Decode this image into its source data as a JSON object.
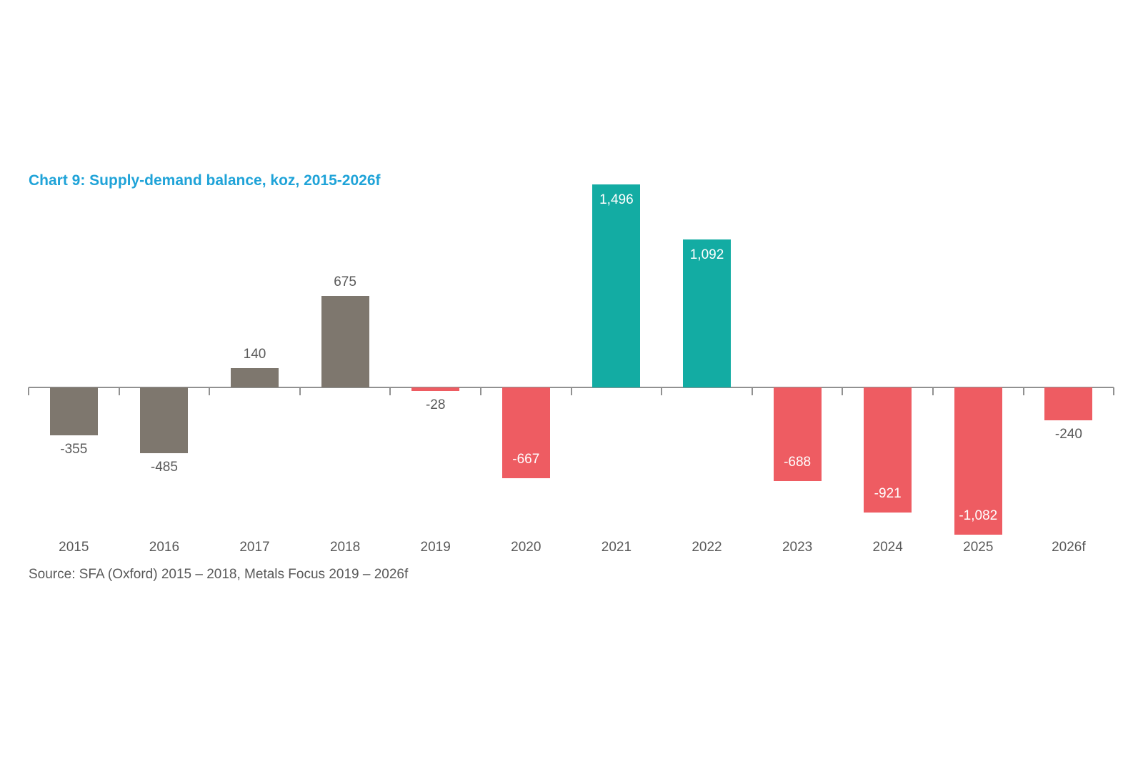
{
  "title": "Chart 9: Supply-demand balance, koz, 2015-2026f",
  "source": "Source: SFA (Oxford) 2015 – 2018, Metals Focus 2019 – 2026f",
  "colors": {
    "title": "#1FA3D8",
    "text": "#595959",
    "axis": "#919191",
    "inside_label": "#FFFFFF",
    "background": "#FFFFFF"
  },
  "chart_data": {
    "type": "bar",
    "title": "Chart 9: Supply-demand balance, koz, 2015-2026f",
    "unit": "koz",
    "categories": [
      "2015",
      "2016",
      "2017",
      "2018",
      "2019",
      "2020",
      "2021",
      "2022",
      "2023",
      "2024",
      "2025",
      "2026f"
    ],
    "values": [
      -355,
      -485,
      140,
      675,
      -28,
      -667,
      1496,
      1092,
      -688,
      -921,
      -1082,
      -240
    ],
    "value_labels": [
      "-355",
      "-485",
      "140",
      "675",
      "-28",
      "-667",
      "1,496",
      "1,092",
      "-688",
      "-921",
      "-1,082",
      "-240"
    ],
    "bar_color_keys": [
      "gray",
      "gray",
      "gray",
      "gray",
      "red",
      "red",
      "teal",
      "teal",
      "red",
      "red",
      "red",
      "red"
    ],
    "palette": {
      "gray": "#7E776E",
      "teal": "#13ACA3",
      "red": "#EE5C62"
    },
    "label_inside": [
      false,
      false,
      false,
      false,
      false,
      true,
      true,
      true,
      true,
      true,
      true,
      false
    ],
    "axis": {
      "baseline_value": 0,
      "gridlines": false,
      "legend": null,
      "tick_marks": "category-boundaries"
    }
  }
}
